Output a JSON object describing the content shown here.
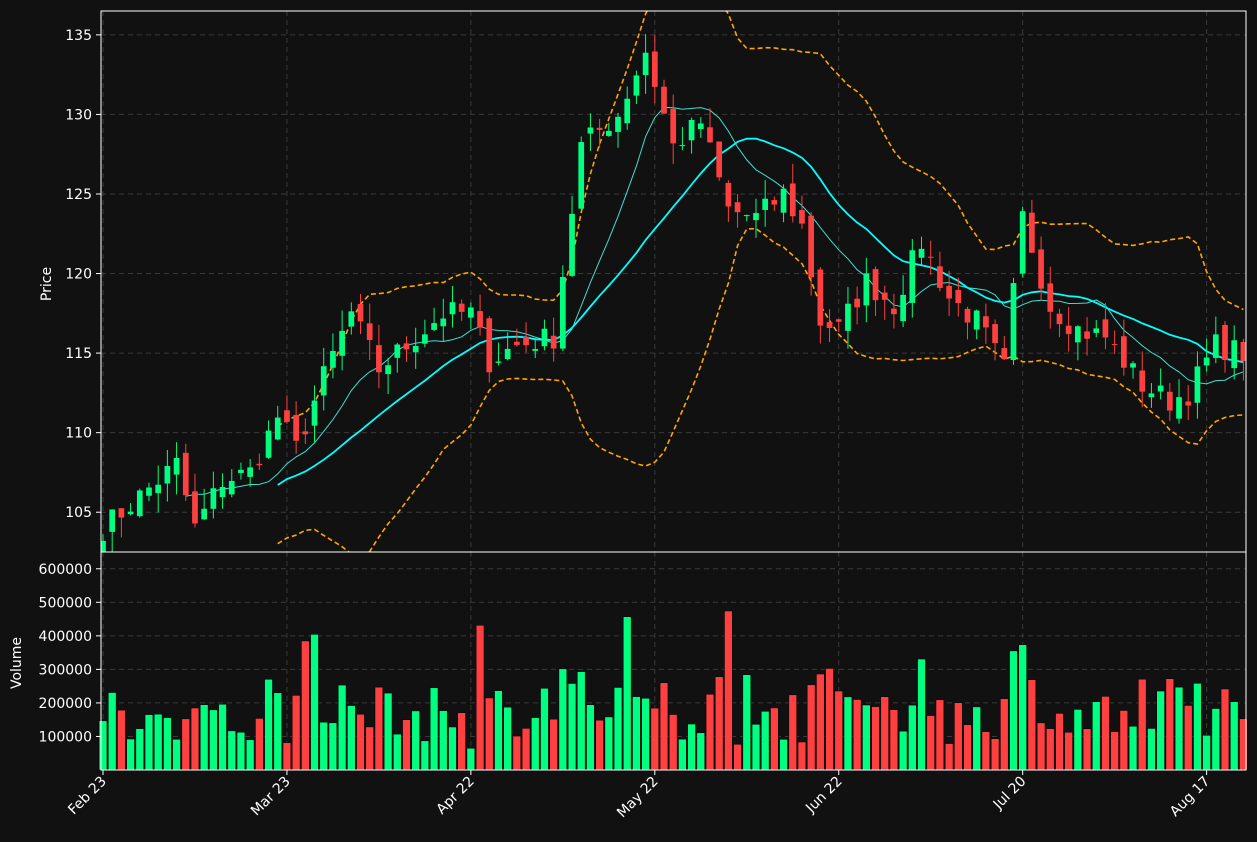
{
  "chart_data": {
    "type": "candlestick",
    "colors": {
      "background": "#111111",
      "up": "#00ff80",
      "down": "#ff4040",
      "ma_fast": "#40e0d0",
      "ma_slow": "#00ffff",
      "band": "#ffa500",
      "grid": "#3a3a3a",
      "text": "#ffffff"
    },
    "price_axis": {
      "label": "Price",
      "ylim": [
        102.5,
        136.5
      ],
      "ticks": [
        105,
        110,
        115,
        120,
        125,
        130,
        135
      ]
    },
    "volume_axis": {
      "label": "Volume",
      "ylim": [
        0,
        650000
      ],
      "ticks": [
        100000,
        200000,
        300000,
        400000,
        500000,
        600000
      ]
    },
    "x_ticks": [
      {
        "index": 0,
        "label": "Feb 23"
      },
      {
        "index": 20,
        "label": "Mar 23"
      },
      {
        "index": 40,
        "label": "Apr 22"
      },
      {
        "index": 60,
        "label": "May 22"
      },
      {
        "index": 80,
        "label": "Jun 22"
      },
      {
        "index": 100,
        "label": "Jul 20"
      },
      {
        "index": 120,
        "label": "Aug 17"
      }
    ],
    "n_candles": 125,
    "anchors": [
      [
        0,
        104
      ],
      [
        8,
        108
      ],
      [
        10,
        104
      ],
      [
        13,
        107
      ],
      [
        16,
        107.5
      ],
      [
        19,
        111
      ],
      [
        21,
        109
      ],
      [
        24,
        113.5
      ],
      [
        27,
        117.5
      ],
      [
        30,
        114
      ],
      [
        34,
        116
      ],
      [
        37,
        117.5
      ],
      [
        40,
        117.5
      ],
      [
        42,
        114.5
      ],
      [
        45,
        115.5
      ],
      [
        49,
        116
      ],
      [
        52,
        128
      ],
      [
        56,
        130
      ],
      [
        59,
        134
      ],
      [
        62,
        128
      ],
      [
        65,
        129.5
      ],
      [
        68,
        124
      ],
      [
        71,
        123.5
      ],
      [
        74,
        125
      ],
      [
        76,
        123
      ],
      [
        78,
        117
      ],
      [
        80,
        116.5
      ],
      [
        83,
        119.5
      ],
      [
        86,
        118
      ],
      [
        89,
        122
      ],
      [
        92,
        118.5
      ],
      [
        95,
        117
      ],
      [
        98,
        114
      ],
      [
        100,
        123.5
      ],
      [
        103,
        118
      ],
      [
        106,
        116.5
      ],
      [
        109,
        116
      ],
      [
        113,
        113
      ],
      [
        116,
        112
      ],
      [
        118,
        112.5
      ],
      [
        121,
        115.5
      ],
      [
        124,
        115
      ]
    ]
  }
}
